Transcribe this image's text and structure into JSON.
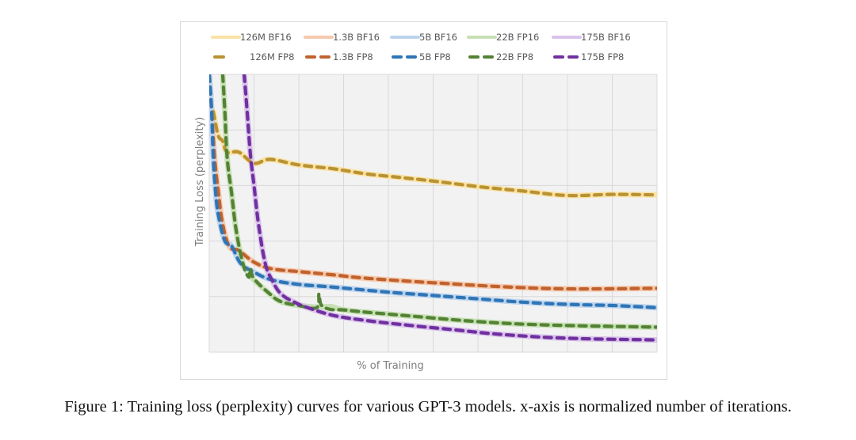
{
  "caption": "Figure 1: Training loss (perplexity) curves for various GPT-3 models. x-axis is normalized number of iterations.",
  "chart_data": {
    "type": "line",
    "title": "",
    "xlabel": "% of Training",
    "ylabel": "Training Loss (perplexity)",
    "xlim": [
      0,
      100
    ],
    "ylim": [
      0,
      5
    ],
    "x_gridlines": [
      0,
      10,
      20,
      30,
      40,
      50,
      60,
      70,
      80,
      90,
      100
    ],
    "y_gridlines": [
      0,
      1,
      2,
      3,
      4,
      5
    ],
    "x_tick_labels": [],
    "y_tick_labels": [],
    "grid": true,
    "legend_position": "top",
    "plot_background": "#f2f2f2",
    "note": "No numeric tick labels shown; y values are in gridline units (0 = bottom, 5 = top), x in percent of training.",
    "series": [
      {
        "name": "126M BF16",
        "style": "solid",
        "color": "#fbe2a5",
        "x": [
          0.9,
          2.0,
          3.0,
          4.0,
          6.6,
          10,
          13.6,
          20,
          27.8,
          35,
          42,
          50,
          60,
          70,
          80,
          90,
          100
        ],
        "y": [
          4.33,
          3.9,
          3.8,
          3.6,
          3.6,
          3.4,
          3.47,
          3.37,
          3.3,
          3.21,
          3.15,
          3.08,
          2.98,
          2.9,
          2.82,
          2.84,
          2.83
        ]
      },
      {
        "name": "126M FP8",
        "style": "dashed",
        "color": "#b89233",
        "x": [
          0.9,
          2.0,
          3.0,
          4.0,
          6.6,
          10,
          13.6,
          20,
          27.8,
          35,
          42,
          50,
          60,
          70,
          80,
          90,
          100
        ],
        "y": [
          4.33,
          3.9,
          3.8,
          3.6,
          3.6,
          3.4,
          3.47,
          3.37,
          3.3,
          3.21,
          3.15,
          3.08,
          2.98,
          2.9,
          2.82,
          2.84,
          2.83
        ]
      },
      {
        "name": "1.3B BF16",
        "style": "solid",
        "color": "#f6c9ad",
        "x": [
          0,
          0.5,
          1.2,
          2.0,
          3.0,
          4.5,
          6.6,
          10,
          14,
          20,
          27.8,
          35,
          50,
          65,
          80,
          100
        ],
        "y": [
          5.0,
          4.4,
          3.5,
          2.9,
          2.3,
          1.9,
          1.83,
          1.62,
          1.5,
          1.45,
          1.39,
          1.33,
          1.25,
          1.18,
          1.14,
          1.15
        ]
      },
      {
        "name": "1.3B FP8",
        "style": "dashed",
        "color": "#c0622d",
        "x": [
          0,
          0.5,
          1.2,
          2.0,
          3.0,
          4.5,
          6.6,
          10,
          14,
          20,
          27.8,
          35,
          50,
          65,
          80,
          100
        ],
        "y": [
          5.0,
          4.4,
          3.5,
          2.9,
          2.3,
          1.9,
          1.83,
          1.62,
          1.5,
          1.45,
          1.39,
          1.33,
          1.25,
          1.18,
          1.14,
          1.15
        ]
      },
      {
        "name": "5B BF16",
        "style": "solid",
        "color": "#bcd3ee",
        "x": [
          0,
          0.5,
          0.9,
          1.5,
          2.2,
          3.5,
          5.0,
          7.0,
          10,
          14,
          20,
          27.8,
          40,
          50,
          60,
          70,
          80,
          90,
          100
        ],
        "y": [
          5.0,
          4.4,
          3.5,
          2.8,
          2.4,
          2.0,
          1.91,
          1.6,
          1.44,
          1.3,
          1.22,
          1.17,
          1.08,
          1.02,
          0.96,
          0.9,
          0.86,
          0.84,
          0.8
        ]
      },
      {
        "name": "5B FP8",
        "style": "dashed",
        "color": "#2e75b6",
        "x": [
          0,
          0.5,
          0.9,
          1.5,
          2.2,
          3.5,
          5.0,
          7.0,
          10,
          14,
          20,
          27.8,
          40,
          50,
          60,
          70,
          80,
          90,
          100
        ],
        "y": [
          5.0,
          4.4,
          3.5,
          2.8,
          2.4,
          2.0,
          1.91,
          1.6,
          1.44,
          1.3,
          1.22,
          1.17,
          1.08,
          1.02,
          0.96,
          0.9,
          0.86,
          0.84,
          0.8
        ]
      },
      {
        "name": "22B FP16",
        "style": "solid",
        "color": "#c6e0b4",
        "x": [
          3.0,
          3.5,
          4.0,
          5.0,
          6.0,
          7.5,
          9.0,
          10,
          13.5,
          16,
          20,
          24,
          27,
          28,
          30,
          35,
          45,
          60,
          75,
          100
        ],
        "y": [
          5.0,
          4.3,
          3.5,
          2.85,
          2.2,
          1.6,
          1.4,
          1.3,
          1.05,
          0.91,
          0.84,
          0.81,
          0.82,
          0.8,
          0.76,
          0.72,
          0.65,
          0.55,
          0.49,
          0.45
        ]
      },
      {
        "name": "22B FP8",
        "style": "dashed",
        "color": "#548235",
        "x": [
          3.0,
          3.5,
          4.0,
          5.0,
          6.0,
          7.5,
          8.8,
          9.2,
          10,
          13.5,
          16,
          20,
          24,
          24.5,
          25,
          27,
          30,
          35,
          45,
          60,
          75,
          100
        ],
        "y": [
          5.0,
          4.3,
          3.5,
          2.85,
          2.2,
          1.6,
          1.35,
          1.5,
          1.32,
          1.05,
          0.91,
          0.84,
          0.8,
          1.05,
          0.85,
          0.77,
          0.76,
          0.72,
          0.65,
          0.55,
          0.49,
          0.45
        ]
      },
      {
        "name": "175B BF16",
        "style": "solid",
        "color": "#d9c3ea",
        "x": [
          7.8,
          8.5,
          9.2,
          10,
          11,
          12.5,
          14,
          16,
          19,
          22,
          27.8,
          35,
          45,
          55,
          65,
          80,
          100
        ],
        "y": [
          5.0,
          4.3,
          3.55,
          3.0,
          2.3,
          1.6,
          1.3,
          1.05,
          0.9,
          0.8,
          0.66,
          0.57,
          0.48,
          0.4,
          0.32,
          0.25,
          0.22
        ]
      },
      {
        "name": "175B FP8",
        "style": "dashed",
        "color": "#7030a0",
        "x": [
          7.8,
          8.5,
          9.2,
          10,
          11,
          12.5,
          14,
          16,
          19,
          22,
          27.8,
          35,
          45,
          55,
          65,
          80,
          100
        ],
        "y": [
          5.0,
          4.3,
          3.55,
          3.0,
          2.3,
          1.6,
          1.3,
          1.05,
          0.9,
          0.8,
          0.66,
          0.57,
          0.48,
          0.4,
          0.32,
          0.25,
          0.22
        ]
      }
    ],
    "legend": [
      {
        "label": "126M BF16",
        "series": 0
      },
      {
        "label": "1.3B BF16",
        "series": 2
      },
      {
        "label": "5B BF16",
        "series": 4
      },
      {
        "label": "22B FP16",
        "series": 6
      },
      {
        "label": "175B BF16",
        "series": 8
      },
      {
        "label": "126M FP8",
        "series": 1
      },
      {
        "label": "1.3B FP8",
        "series": 3
      },
      {
        "label": "5B FP8",
        "series": 5
      },
      {
        "label": "22B FP8",
        "series": 7
      },
      {
        "label": "175B FP8",
        "series": 9
      }
    ]
  }
}
